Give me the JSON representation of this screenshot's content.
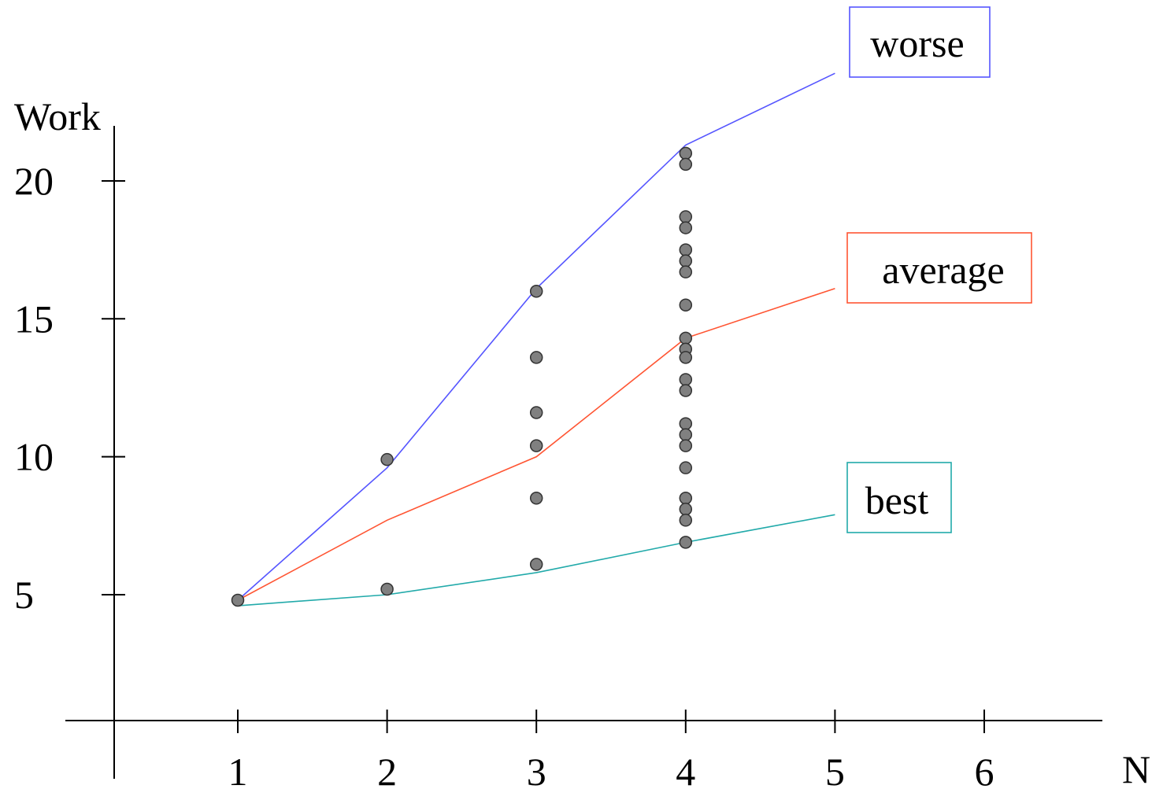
{
  "chart_data": {
    "type": "line",
    "title": "",
    "xlabel": "N",
    "ylabel": "Work",
    "x_ticks": [
      "1",
      "2",
      "3",
      "4",
      "5",
      "6"
    ],
    "y_ticks": [
      "5",
      "10",
      "15",
      "20"
    ],
    "xlim": [
      0.2,
      6.7
    ],
    "ylim": [
      0.5,
      22.5
    ],
    "grid": false,
    "series": [
      {
        "name": "worse",
        "color": "#5555ff",
        "x": [
          1,
          2,
          3,
          4,
          5
        ],
        "y": [
          4.8,
          9.6,
          16.1,
          21.3,
          23.9
        ]
      },
      {
        "name": "average",
        "color": "#ff5533",
        "x": [
          1,
          2,
          3,
          4,
          5
        ],
        "y": [
          4.8,
          7.7,
          10.0,
          14.3,
          16.1
        ]
      },
      {
        "name": "best",
        "color": "#22aaaa",
        "x": [
          1,
          2,
          3,
          4,
          5
        ],
        "y": [
          4.6,
          5.0,
          5.8,
          6.9,
          7.9
        ]
      }
    ],
    "scatter": {
      "color": "#808080",
      "points": [
        [
          1,
          4.8
        ],
        [
          2,
          9.9
        ],
        [
          2,
          5.2
        ],
        [
          3,
          16.0
        ],
        [
          3,
          13.6
        ],
        [
          3,
          11.6
        ],
        [
          3,
          10.4
        ],
        [
          3,
          8.5
        ],
        [
          3,
          6.1
        ],
        [
          4,
          21.0
        ],
        [
          4,
          20.6
        ],
        [
          4,
          18.7
        ],
        [
          4,
          18.3
        ],
        [
          4,
          17.5
        ],
        [
          4,
          17.1
        ],
        [
          4,
          16.7
        ],
        [
          4,
          15.5
        ],
        [
          4,
          14.3
        ],
        [
          4,
          13.9
        ],
        [
          4,
          13.6
        ],
        [
          4,
          12.8
        ],
        [
          4,
          12.4
        ],
        [
          4,
          11.2
        ],
        [
          4,
          10.8
        ],
        [
          4,
          10.4
        ],
        [
          4,
          9.6
        ],
        [
          4,
          8.5
        ],
        [
          4,
          8.1
        ],
        [
          4,
          7.7
        ],
        [
          4,
          6.9
        ]
      ]
    }
  }
}
